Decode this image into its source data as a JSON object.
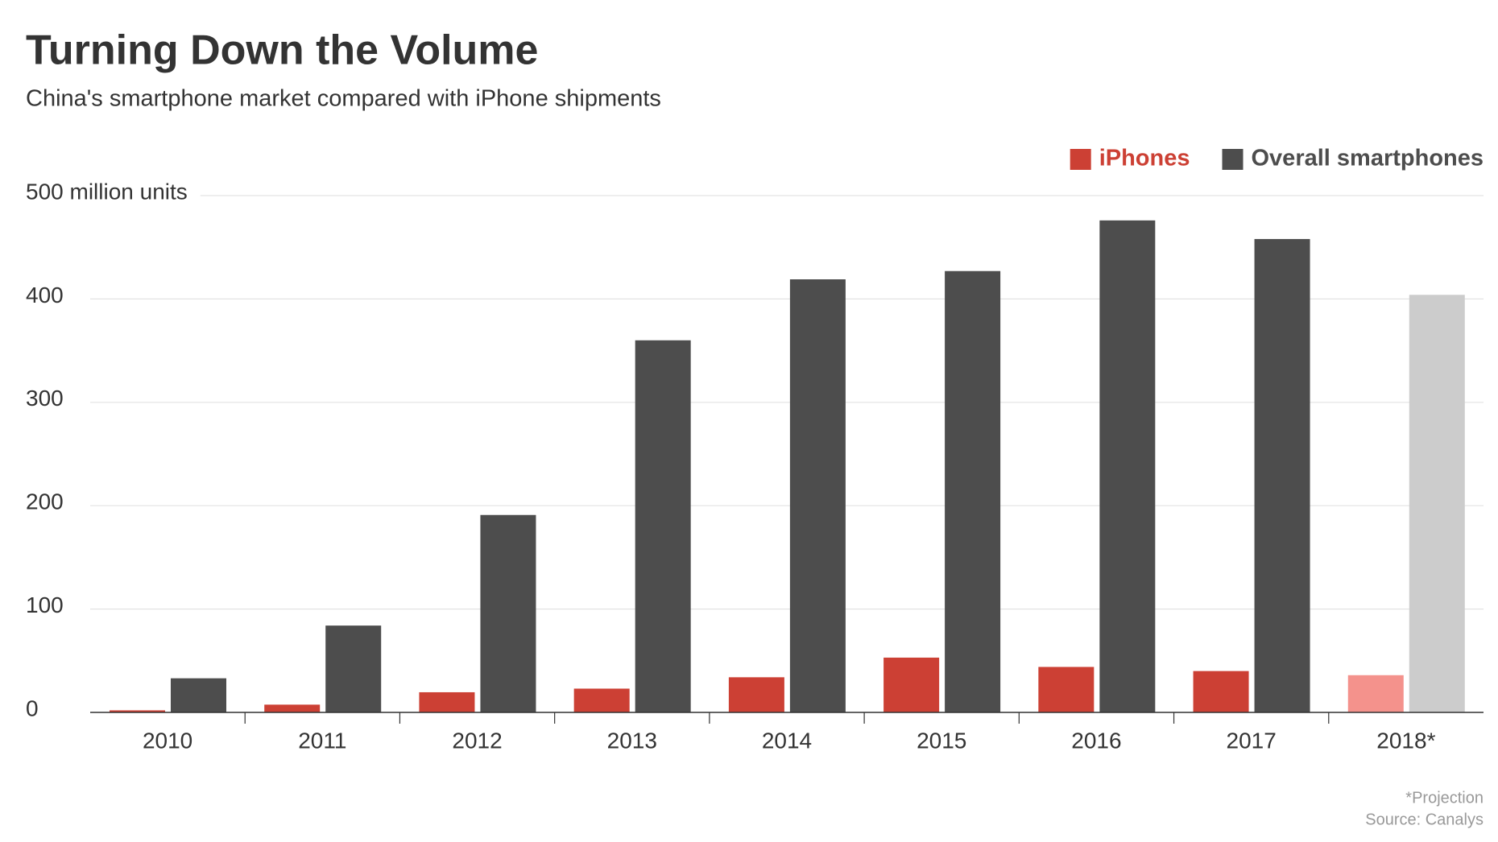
{
  "chart_data": {
    "type": "bar",
    "title": "Turning Down the Volume",
    "subtitle": "China's smartphone market compared with iPhone shipments",
    "categories": [
      "2010",
      "2011",
      "2012",
      "2013",
      "2014",
      "2015",
      "2016",
      "2017",
      "2018*"
    ],
    "series": [
      {
        "name": "iPhones",
        "color": "#cc4034",
        "colors": [
          "#cc4034",
          "#cc4034",
          "#cc4034",
          "#cc4034",
          "#cc4034",
          "#cc4034",
          "#cc4034",
          "#cc4034",
          "#f4928c"
        ],
        "values": [
          2,
          7.5,
          19.5,
          23,
          34,
          53,
          44,
          40,
          36
        ]
      },
      {
        "name": "Overall smartphones",
        "color": "#4d4d4d",
        "colors": [
          "#4d4d4d",
          "#4d4d4d",
          "#4d4d4d",
          "#4d4d4d",
          "#4d4d4d",
          "#4d4d4d",
          "#4d4d4d",
          "#4d4d4d",
          "#cccccc"
        ],
        "values": [
          33,
          84,
          191,
          360,
          419,
          427,
          476,
          458,
          404
        ]
      }
    ],
    "ylim": [
      0,
      500
    ],
    "yticks": [
      0,
      100,
      200,
      300,
      400,
      {
        "value": 500,
        "label": "500 million units"
      }
    ],
    "grid": true,
    "legend": "top-right",
    "notes": [
      "*Projection",
      "Source: Canalys"
    ]
  }
}
